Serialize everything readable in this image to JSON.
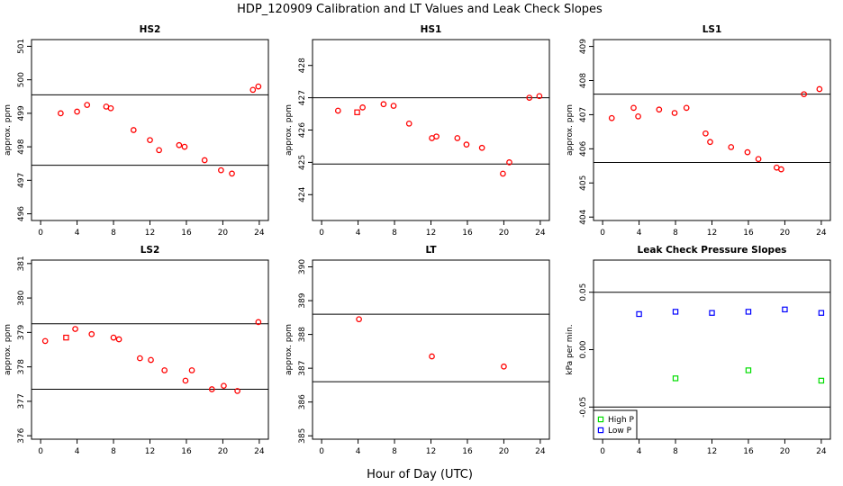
{
  "figure": {
    "title": "HDP_120909  Calibration and LT Values and Leak Check Slopes",
    "xlabel": "Hour of Day (UTC)"
  },
  "chart_data": [
    {
      "type": "scatter",
      "title": "HS2",
      "ylabel": "approx. ppm",
      "xlim": [
        -1,
        25
      ],
      "ylim": [
        495.8,
        501.2
      ],
      "xticks": [
        "0",
        "4",
        "8",
        "12",
        "16",
        "20",
        "24"
      ],
      "yticks": [
        "496",
        "497",
        "498",
        "499",
        "500",
        "501"
      ],
      "ytick_values": [
        496,
        497,
        498,
        499,
        500,
        501
      ],
      "hlines": [
        499.55,
        497.45
      ],
      "series": [
        {
          "marker": "circle",
          "color": "#ff0000",
          "x": [
            2.2,
            4.0,
            5.1,
            7.2,
            7.7,
            10.2,
            12.0,
            13.0,
            15.2,
            15.8,
            18.0,
            19.8,
            21.0,
            23.3,
            23.9
          ],
          "y": [
            499.0,
            499.05,
            499.25,
            499.2,
            499.15,
            498.5,
            498.2,
            497.9,
            498.05,
            498.0,
            497.6,
            497.3,
            497.2,
            499.7,
            499.8
          ]
        }
      ]
    },
    {
      "type": "scatter",
      "title": "HS1",
      "ylabel": "approx. ppm",
      "xlim": [
        -1,
        25
      ],
      "ylim": [
        423.2,
        428.8
      ],
      "xticks": [
        "0",
        "4",
        "8",
        "12",
        "16",
        "20",
        "24"
      ],
      "yticks": [
        "424",
        "425",
        "426",
        "427",
        "428"
      ],
      "ytick_values": [
        424,
        425,
        426,
        427,
        428
      ],
      "hlines": [
        427.0,
        424.95
      ],
      "series": [
        {
          "marker": "circle",
          "color": "#ff0000",
          "x": [
            1.8,
            4.5,
            6.8,
            7.9,
            9.6,
            12.1,
            12.6,
            14.9,
            15.9,
            17.6,
            19.9,
            20.6,
            22.8,
            23.9
          ],
          "y": [
            426.6,
            426.7,
            426.8,
            426.75,
            426.2,
            425.75,
            425.8,
            425.75,
            425.55,
            425.45,
            424.65,
            425.0,
            427.0,
            427.05
          ]
        },
        {
          "marker": "square",
          "color": "#ff0000",
          "x": [
            3.9
          ],
          "y": [
            426.55
          ]
        }
      ]
    },
    {
      "type": "scatter",
      "title": "LS1",
      "ylabel": "approx. ppm",
      "xlim": [
        -1,
        25
      ],
      "ylim": [
        403.9,
        409.2
      ],
      "xticks": [
        "0",
        "4",
        "8",
        "12",
        "16",
        "20",
        "24"
      ],
      "yticks": [
        "404",
        "405",
        "406",
        "407",
        "408",
        "409"
      ],
      "ytick_values": [
        404,
        405,
        406,
        407,
        408,
        409
      ],
      "hlines": [
        407.6,
        405.6
      ],
      "series": [
        {
          "marker": "circle",
          "color": "#ff0000",
          "x": [
            1.0,
            3.4,
            3.9,
            6.2,
            7.9,
            9.2,
            11.3,
            11.8,
            14.1,
            15.9,
            17.1,
            19.1,
            19.6,
            22.1,
            23.8
          ],
          "y": [
            406.9,
            407.2,
            406.95,
            407.15,
            407.05,
            407.2,
            406.45,
            406.2,
            406.05,
            405.9,
            405.7,
            405.45,
            405.4,
            407.6,
            407.75
          ]
        }
      ]
    },
    {
      "type": "scatter",
      "title": "LS2",
      "ylabel": "approx. ppm",
      "xlim": [
        -1,
        25
      ],
      "ylim": [
        375.9,
        381.1
      ],
      "xticks": [
        "0",
        "4",
        "8",
        "12",
        "16",
        "20",
        "24"
      ],
      "yticks": [
        "376",
        "377",
        "378",
        "379",
        "380",
        "381"
      ],
      "ytick_values": [
        376,
        377,
        378,
        379,
        380,
        381
      ],
      "hlines": [
        379.25,
        377.35
      ],
      "series": [
        {
          "marker": "circle",
          "color": "#ff0000",
          "x": [
            0.5,
            3.8,
            5.6,
            8.0,
            8.6,
            10.9,
            12.1,
            13.6,
            15.9,
            16.6,
            18.8,
            20.1,
            21.6,
            23.9
          ],
          "y": [
            378.75,
            379.1,
            378.95,
            378.85,
            378.8,
            378.25,
            378.2,
            377.9,
            377.6,
            377.9,
            377.35,
            377.45,
            377.3,
            379.3
          ]
        },
        {
          "marker": "square",
          "color": "#ff0000",
          "x": [
            2.8
          ],
          "y": [
            378.85
          ]
        }
      ]
    },
    {
      "type": "scatter",
      "title": "LT",
      "ylabel": "approx. ppm",
      "xlim": [
        -1,
        25
      ],
      "ylim": [
        384.9,
        390.2
      ],
      "xticks": [
        "0",
        "4",
        "8",
        "12",
        "16",
        "20",
        "24"
      ],
      "yticks": [
        "385",
        "386",
        "387",
        "388",
        "389",
        "390"
      ],
      "ytick_values": [
        385,
        386,
        387,
        388,
        389,
        390
      ],
      "hlines": [
        388.6,
        386.6
      ],
      "series": [
        {
          "marker": "circle",
          "color": "#ff0000",
          "x": [
            4.1,
            12.1,
            20.0
          ],
          "y": [
            388.45,
            387.35,
            387.05
          ]
        }
      ]
    },
    {
      "type": "scatter",
      "title": "Leak Check Pressure Slopes",
      "ylabel": "kPa per min.",
      "xlim": [
        -1,
        25
      ],
      "ylim": [
        -0.078,
        0.078
      ],
      "xticks": [
        "0",
        "4",
        "8",
        "12",
        "16",
        "20",
        "24"
      ],
      "yticks": [
        "-0.05",
        "0.00",
        "0.05"
      ],
      "ytick_values": [
        -0.05,
        0.0,
        0.05
      ],
      "hlines": [
        0.05,
        -0.05
      ],
      "legend": {
        "position": "bottom-left"
      },
      "series": [
        {
          "name": "High P",
          "marker": "square",
          "color": "#00dd00",
          "x": [
            8.0,
            16.0,
            24.0
          ],
          "y": [
            -0.025,
            -0.018,
            -0.027
          ]
        },
        {
          "name": "Low P",
          "marker": "square",
          "color": "#0000ff",
          "x": [
            4.0,
            8.0,
            12.0,
            16.0,
            20.0,
            24.0
          ],
          "y": [
            0.031,
            0.033,
            0.032,
            0.033,
            0.035,
            0.032
          ]
        }
      ]
    }
  ]
}
